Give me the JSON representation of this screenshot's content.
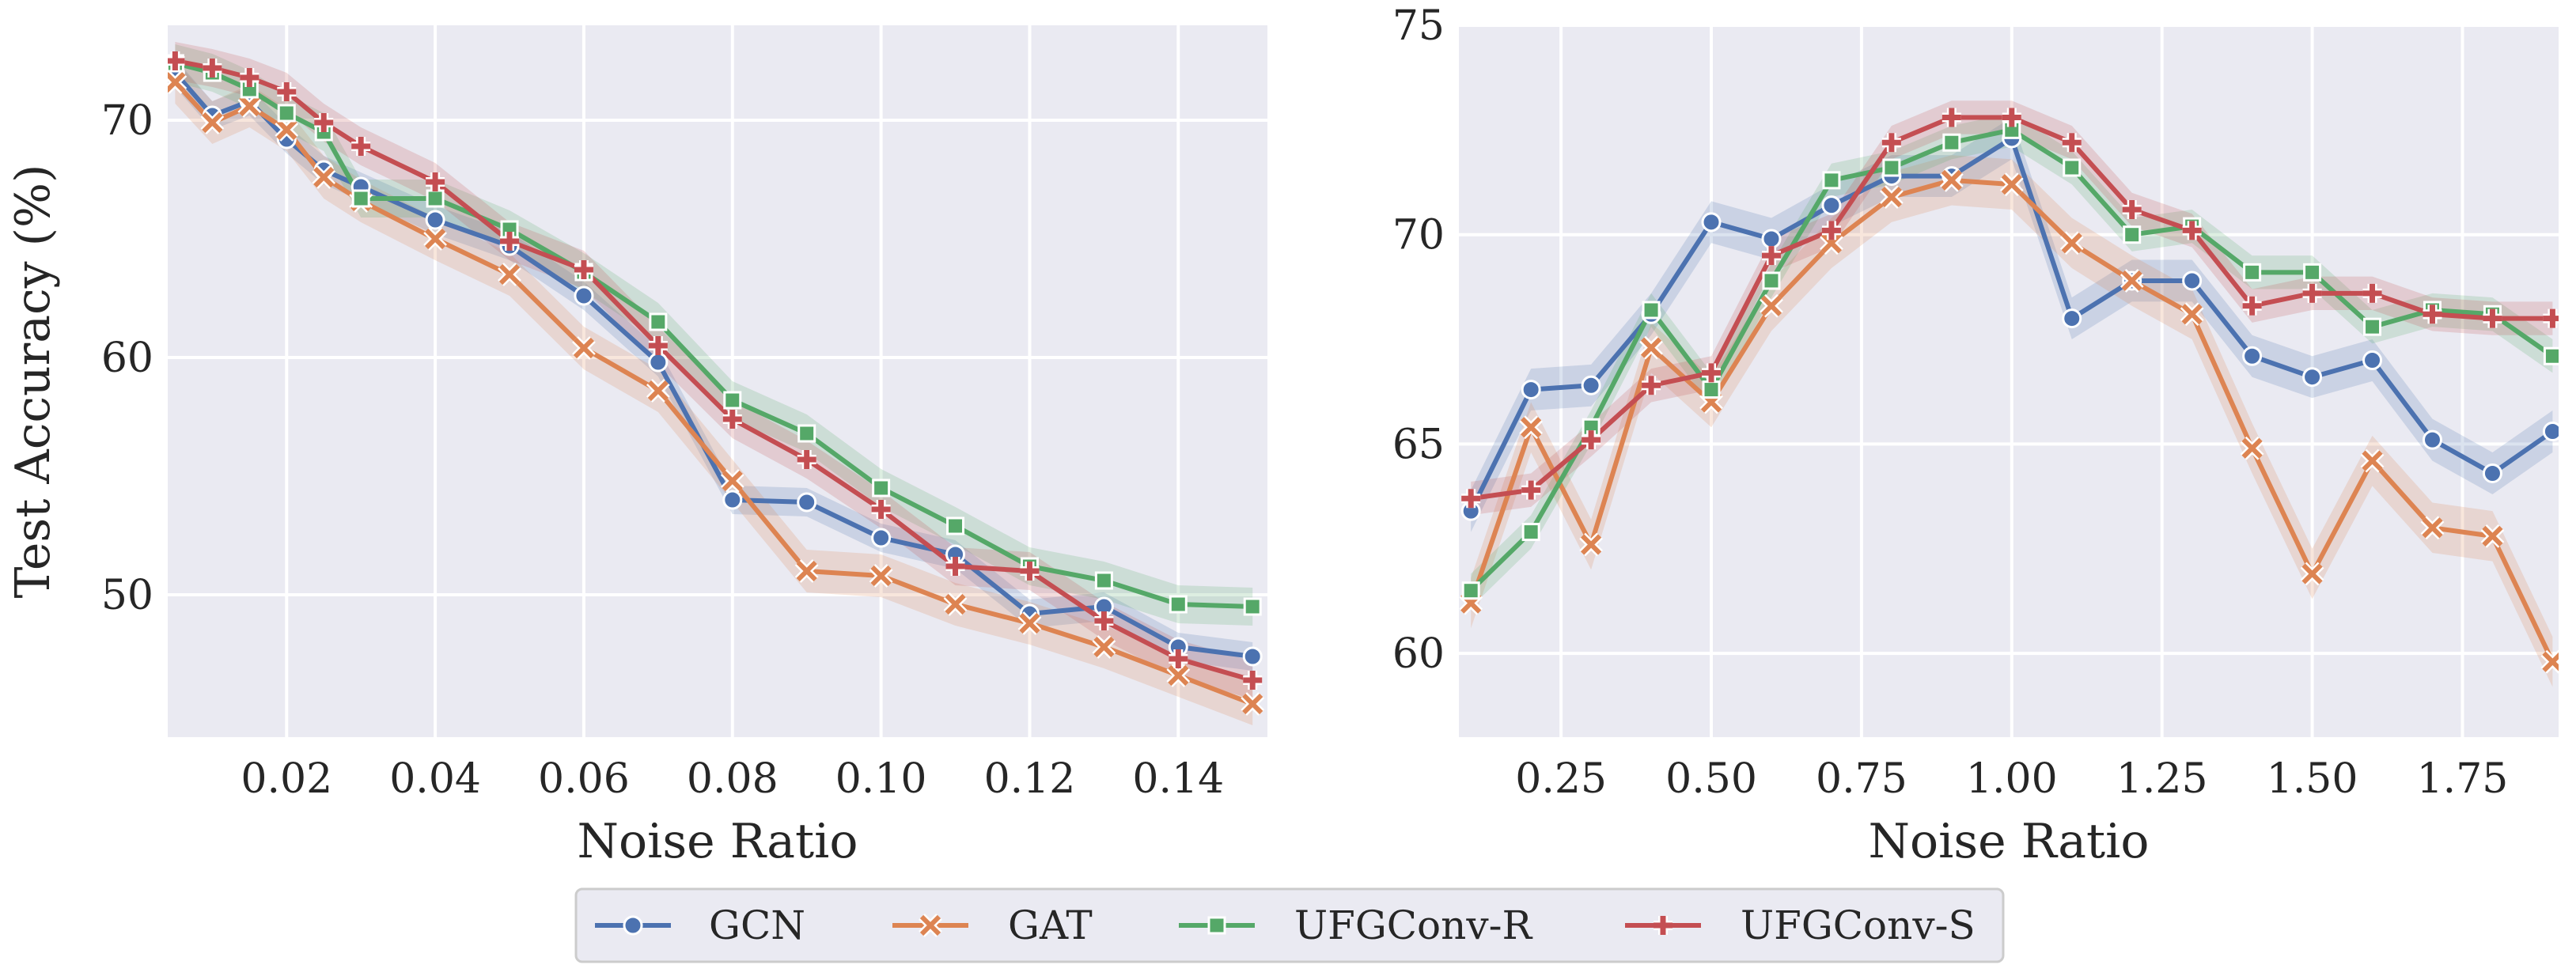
{
  "colors": {
    "background": "#eaeaf2",
    "grid": "#ffffff",
    "GCN": "#4c72b0",
    "GAT": "#dd8452",
    "UFGConv-R": "#55a868",
    "UFGConv-S": "#c44e52"
  },
  "legend": {
    "entries": [
      {
        "name": "GCN",
        "marker": "circle"
      },
      {
        "name": "GAT",
        "marker": "x"
      },
      {
        "name": "UFGConv-R",
        "marker": "square"
      },
      {
        "name": "UFGConv-S",
        "marker": "plus"
      }
    ]
  },
  "chart_data": [
    {
      "type": "line",
      "xlabel": "Noise Ratio",
      "ylabel": "Test Accuracy (%)",
      "xlim": [
        0.004,
        0.152
      ],
      "ylim": [
        44,
        74
      ],
      "xticks": [
        0.02,
        0.04,
        0.06,
        0.08,
        0.1,
        0.12,
        0.14
      ],
      "xtick_labels": [
        "0.02",
        "0.04",
        "0.06",
        "0.08",
        "0.10",
        "0.12",
        "0.14"
      ],
      "yticks": [
        50,
        60,
        70
      ],
      "ytick_labels": [
        "50",
        "60",
        "70"
      ],
      "x": [
        0.005,
        0.01,
        0.015,
        0.02,
        0.025,
        0.03,
        0.04,
        0.05,
        0.06,
        0.07,
        0.08,
        0.09,
        0.1,
        0.11,
        0.12,
        0.13,
        0.14,
        0.15
      ],
      "series": [
        {
          "name": "GCN",
          "values": [
            72.0,
            70.2,
            70.8,
            69.2,
            67.9,
            67.2,
            65.8,
            64.7,
            62.6,
            59.8,
            54.0,
            53.9,
            52.4,
            51.7,
            49.2,
            49.5,
            47.8,
            47.4
          ],
          "band": 0.6
        },
        {
          "name": "GAT",
          "values": [
            71.6,
            69.9,
            70.6,
            69.6,
            67.6,
            66.6,
            65.0,
            63.5,
            60.4,
            58.6,
            54.8,
            51.0,
            50.8,
            49.6,
            48.8,
            47.8,
            46.6,
            45.4
          ],
          "band": 0.9
        },
        {
          "name": "UFGConv-R",
          "values": [
            72.4,
            72.0,
            71.3,
            70.3,
            69.5,
            66.7,
            66.7,
            65.4,
            63.6,
            61.5,
            58.2,
            56.8,
            54.5,
            52.9,
            51.2,
            50.6,
            49.6,
            49.5
          ],
          "band": 0.8
        },
        {
          "name": "UFGConv-S",
          "values": [
            72.5,
            72.2,
            71.8,
            71.2,
            69.9,
            68.9,
            67.4,
            64.9,
            63.7,
            60.5,
            57.4,
            55.7,
            53.6,
            51.2,
            51.0,
            48.9,
            47.3,
            46.4
          ],
          "band": 0.8
        }
      ]
    },
    {
      "type": "line",
      "xlabel": "Noise Ratio",
      "ylabel": "",
      "xlim": [
        0.08,
        1.91
      ],
      "ylim": [
        58,
        75
      ],
      "xticks": [
        0.25,
        0.5,
        0.75,
        1.0,
        1.25,
        1.5,
        1.75
      ],
      "xtick_labels": [
        "0.25",
        "0.50",
        "0.75",
        "1.00",
        "1.25",
        "1.50",
        "1.75"
      ],
      "yticks": [
        60,
        65,
        70,
        75
      ],
      "ytick_labels": [
        "60",
        "65",
        "70",
        "75"
      ],
      "x": [
        0.1,
        0.2,
        0.3,
        0.4,
        0.5,
        0.6,
        0.7,
        0.8,
        0.9,
        1.0,
        1.1,
        1.2,
        1.3,
        1.4,
        1.5,
        1.6,
        1.7,
        1.8,
        1.9
      ],
      "series": [
        {
          "name": "GCN",
          "values": [
            63.4,
            66.3,
            66.4,
            68.1,
            70.3,
            69.9,
            70.7,
            71.4,
            71.4,
            72.3,
            68.0,
            68.9,
            68.9,
            67.1,
            66.6,
            67.0,
            65.1,
            64.3,
            65.3
          ],
          "band": 0.5
        },
        {
          "name": "GAT",
          "values": [
            61.2,
            65.4,
            62.6,
            67.3,
            66.0,
            68.3,
            69.8,
            70.9,
            71.3,
            71.2,
            69.8,
            68.9,
            68.1,
            64.9,
            61.9,
            64.6,
            63.0,
            62.8,
            59.8
          ],
          "band": 0.6
        },
        {
          "name": "UFGConv-R",
          "values": [
            61.5,
            62.9,
            65.4,
            68.2,
            66.3,
            68.9,
            71.3,
            71.6,
            72.2,
            72.5,
            71.6,
            70.0,
            70.2,
            69.1,
            69.1,
            67.8,
            68.2,
            68.1,
            67.1
          ],
          "band": 0.4
        },
        {
          "name": "UFGConv-S",
          "values": [
            63.7,
            63.9,
            65.1,
            66.4,
            66.7,
            69.5,
            70.1,
            72.2,
            72.8,
            72.8,
            72.2,
            70.6,
            70.1,
            68.3,
            68.6,
            68.6,
            68.1,
            68.0,
            68.0
          ],
          "band": 0.4
        }
      ]
    }
  ]
}
